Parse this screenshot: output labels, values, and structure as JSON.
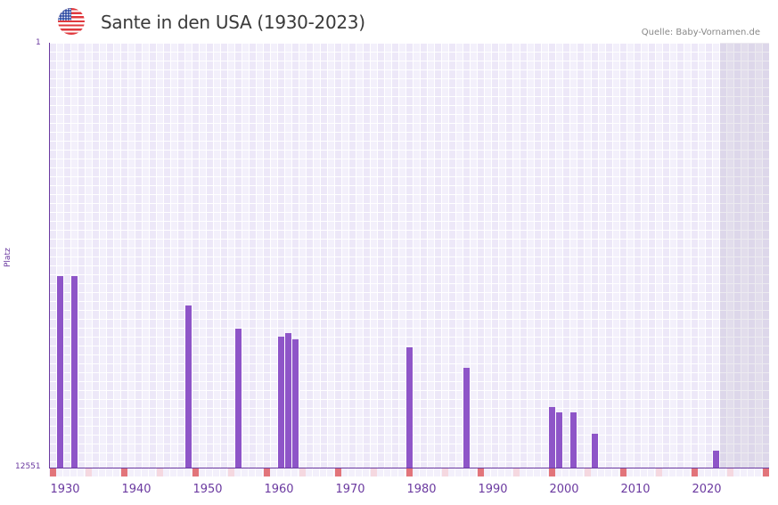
{
  "header": {
    "title": "Sante in den USA (1930-2023)",
    "source": "Quelle: Baby-Vornamen.de",
    "flag_icon": "us-flag-icon"
  },
  "colors": {
    "bar": "#8e55c8",
    "axis": "#6b3aa0",
    "decade_marker": "#e2747a",
    "half_decade_marker": "#f5d8e0",
    "future_shade": "#e2dfeb"
  },
  "chart_data": {
    "type": "bar",
    "title": "Sante in den USA (1930-2023)",
    "xlabel": "",
    "ylabel": "Platz",
    "y_inverted": true,
    "ylim": [
      1,
      12551
    ],
    "y_tick_labels": [
      "1",
      "12551"
    ],
    "x_range": [
      1929,
      2029
    ],
    "x_tick_labels": [
      "1930",
      "1940",
      "1950",
      "1960",
      "1970",
      "1980",
      "1990",
      "2000",
      "2010",
      "2020"
    ],
    "shaded_from_year": 2023,
    "grid": true,
    "legend": null,
    "points": [
      {
        "year": 1930,
        "rank": 6894
      },
      {
        "year": 1932,
        "rank": 6894
      },
      {
        "year": 1948,
        "rank": 7762
      },
      {
        "year": 1955,
        "rank": 8446
      },
      {
        "year": 1961,
        "rank": 8683
      },
      {
        "year": 1962,
        "rank": 8578
      },
      {
        "year": 1963,
        "rank": 8762
      },
      {
        "year": 1979,
        "rank": 8999
      },
      {
        "year": 1987,
        "rank": 9604
      },
      {
        "year": 1999,
        "rank": 10762
      },
      {
        "year": 2000,
        "rank": 10920
      },
      {
        "year": 2002,
        "rank": 10920
      },
      {
        "year": 2005,
        "rank": 11551
      },
      {
        "year": 2022,
        "rank": 12051
      }
    ]
  },
  "axes": {
    "y_top": "1",
    "y_bottom": "12551",
    "y_title": "Platz"
  }
}
